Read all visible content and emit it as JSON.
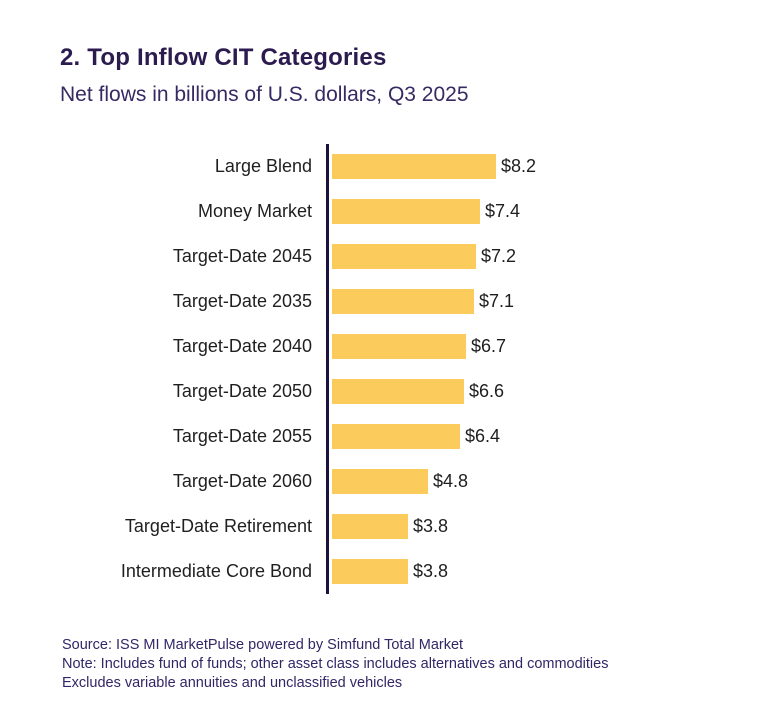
{
  "header": {
    "title": "2. Top Inflow CIT Categories",
    "subtitle": "Net flows in billions of U.S. dollars, Q3 2025"
  },
  "chart_data": {
    "type": "bar",
    "orientation": "horizontal",
    "title": "2. Top Inflow CIT Categories",
    "subtitle": "Net flows in billions of U.S. dollars, Q3 2025",
    "unit": "billions of U.S. dollars",
    "categories": [
      "Large Blend",
      "Money Market",
      "Target-Date 2045",
      "Target-Date 2035",
      "Target-Date 2040",
      "Target-Date 2050",
      "Target-Date 2055",
      "Target-Date 2060",
      "Target-Date Retirement",
      "Intermediate Core Bond"
    ],
    "values": [
      8.2,
      7.4,
      7.2,
      7.1,
      6.7,
      6.6,
      6.4,
      4.8,
      3.8,
      3.8
    ],
    "value_labels": [
      "$8.2",
      "$7.4",
      "$7.2",
      "$7.1",
      "$6.7",
      "$6.6",
      "$6.4",
      "$4.8",
      "$3.8",
      "$3.8"
    ],
    "xlim": [
      0,
      8.5
    ],
    "grid": false,
    "legend": false,
    "bar_color": "#fbcb5c",
    "axis_color": "#1c1240"
  },
  "footer": {
    "lines": [
      "Source: ISS MI MarketPulse powered by Simfund Total Market",
      "Note: Includes fund of funds; other asset class includes alternatives and commodities",
      "Excludes variable annuities and unclassified vehicles"
    ]
  },
  "colors": {
    "title_text": "#2b1b4f",
    "subtitle_text": "#372a63",
    "label_text": "#1f1f1f",
    "value_text": "#1e1e1e",
    "footer_text": "#332667",
    "bar_fill": "#fbcb5c",
    "axis_line": "#1c1240",
    "background": "#ffffff"
  }
}
